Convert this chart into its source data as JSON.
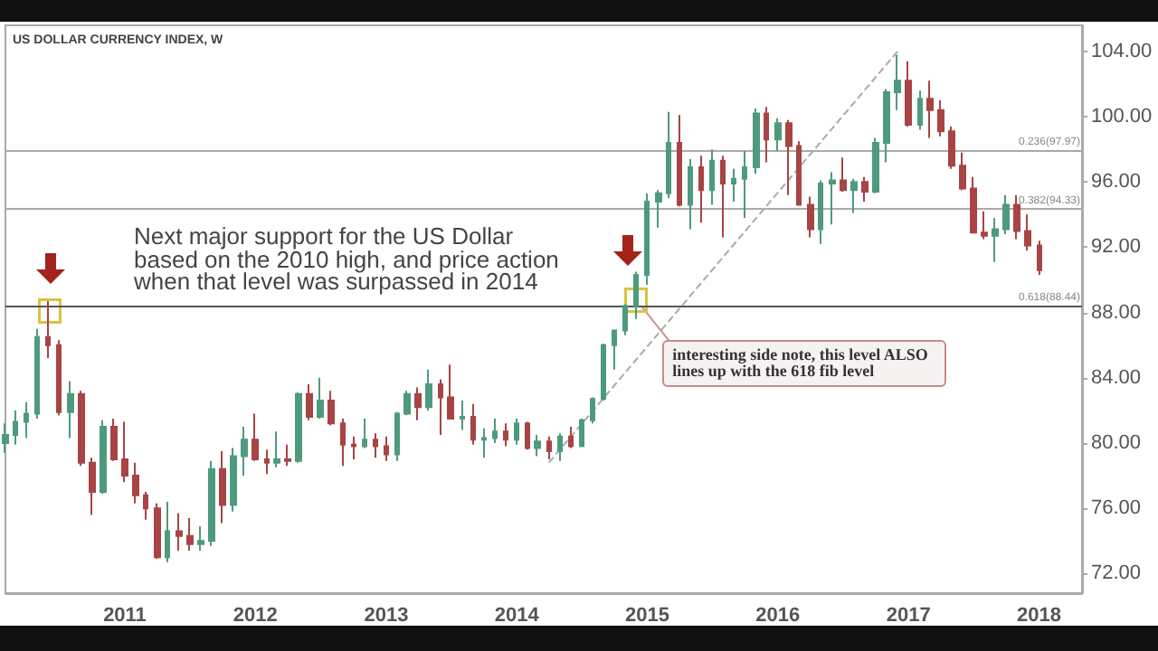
{
  "chart_data": {
    "type": "candlestick",
    "title": "US DOLLAR CURRENCY INDEX, W",
    "annotations": [
      "Next major support for the US Dollar based on the 2010 high, and price action when that level was surpassed in 2014",
      {
        "text": "interesting side note, this level ALSO lines up with the 618 fib level",
        "x": "2014-12",
        "y": 88.44
      }
    ],
    "xlim": [
      "2010-02",
      "2018-05"
    ],
    "xticks": [
      "2011",
      "2012",
      "2013",
      "2014",
      "2015",
      "2016",
      "2017",
      "2018"
    ],
    "ylim": [
      70.8,
      105.6
    ],
    "yticks": [
      {
        "value": 72,
        "label": "72.00"
      },
      {
        "value": 76,
        "label": "76.00"
      },
      {
        "value": 80,
        "label": "80.00"
      },
      {
        "value": 84,
        "label": "84.00"
      },
      {
        "value": 88,
        "label": "88.00"
      },
      {
        "value": 92,
        "label": "92.00"
      },
      {
        "value": 96,
        "label": "96.00"
      },
      {
        "value": 100,
        "label": "100.00"
      },
      {
        "value": 104,
        "label": "104.00"
      }
    ],
    "grid": false,
    "ref_lines": [
      {
        "axis": "y",
        "value": 97.97,
        "label": "0.236(97.97)",
        "color": "#aaaaaa"
      },
      {
        "axis": "y",
        "value": 94.33,
        "label": "0.382(94.33)",
        "color": "#aaaaaa"
      },
      {
        "axis": "y",
        "value": 88.44,
        "label": "0.618(88.44)",
        "color": "#555555"
      }
    ],
    "series": [
      {
        "type": "candlestick",
        "x": [
          "2010-02",
          "2010-03",
          "2010-04",
          "2010-05",
          "2010-06",
          "2010-07",
          "2010-08",
          "2010-09",
          "2010-10",
          "2010-11",
          "2010-12",
          "2011-01",
          "2011-02",
          "2011-03",
          "2011-04",
          "2011-05",
          "2011-06",
          "2011-07",
          "2011-08",
          "2011-09",
          "2011-10",
          "2011-11",
          "2011-12",
          "2012-01",
          "2012-02",
          "2012-03",
          "2012-04",
          "2012-05",
          "2012-06",
          "2012-07",
          "2012-08",
          "2012-09",
          "2012-10",
          "2012-11",
          "2012-12",
          "2013-01",
          "2013-02",
          "2013-03",
          "2013-04",
          "2013-05",
          "2013-06",
          "2013-07",
          "2013-08",
          "2013-09",
          "2013-10",
          "2013-11",
          "2013-12",
          "2014-01",
          "2014-02",
          "2014-03",
          "2014-04",
          "2014-05",
          "2014-06",
          "2014-07",
          "2014-08",
          "2014-09",
          "2014-10",
          "2014-11",
          "2014-12",
          "2015-01",
          "2015-02",
          "2015-03",
          "2015-04",
          "2015-05",
          "2015-06",
          "2015-07",
          "2015-08",
          "2015-09",
          "2015-10",
          "2015-11",
          "2015-12",
          "2016-01",
          "2016-02",
          "2016-03",
          "2016-04",
          "2016-05",
          "2016-06",
          "2016-07",
          "2016-08",
          "2016-09",
          "2016-10",
          "2016-11",
          "2016-12",
          "2017-01",
          "2017-02",
          "2017-03",
          "2017-04",
          "2017-05",
          "2017-06",
          "2017-07",
          "2017-08",
          "2017-09",
          "2017-10",
          "2017-11",
          "2017-12",
          "2018-01"
        ],
        "ohlc": [
          [
            80.0,
            81.2,
            79.4,
            80.5
          ],
          [
            80.5,
            82.0,
            79.9,
            81.3
          ],
          [
            81.3,
            82.5,
            80.3,
            81.8
          ],
          [
            81.8,
            87.0,
            81.5,
            86.5
          ],
          [
            86.5,
            88.7,
            85.2,
            86.0
          ],
          [
            86.0,
            86.3,
            81.7,
            81.9
          ],
          [
            81.9,
            83.8,
            80.3,
            83.0
          ],
          [
            83.0,
            83.2,
            78.6,
            78.8
          ],
          [
            78.8,
            79.1,
            75.6,
            77.0
          ],
          [
            77.0,
            81.4,
            76.9,
            81.0
          ],
          [
            81.0,
            81.5,
            78.9,
            79.0
          ],
          [
            79.0,
            81.3,
            77.6,
            78.0
          ],
          [
            78.0,
            78.8,
            76.3,
            76.8
          ],
          [
            76.8,
            77.0,
            75.3,
            76.0
          ],
          [
            76.0,
            76.3,
            72.9,
            73.0
          ],
          [
            73.0,
            76.4,
            72.7,
            74.6
          ],
          [
            74.6,
            75.7,
            73.4,
            74.3
          ],
          [
            74.3,
            75.4,
            73.4,
            73.8
          ],
          [
            73.8,
            74.9,
            73.4,
            74.0
          ],
          [
            74.0,
            78.9,
            73.7,
            78.4
          ],
          [
            78.4,
            79.5,
            75.1,
            76.2
          ],
          [
            76.2,
            79.7,
            75.8,
            79.2
          ],
          [
            79.2,
            81.0,
            78.0,
            80.2
          ],
          [
            80.2,
            81.8,
            78.9,
            79.0
          ],
          [
            79.0,
            79.6,
            78.1,
            78.8
          ],
          [
            78.8,
            80.7,
            78.5,
            79.0
          ],
          [
            79.0,
            79.9,
            78.6,
            78.9
          ],
          [
            78.9,
            83.1,
            78.8,
            83.0
          ],
          [
            83.0,
            83.6,
            81.4,
            81.6
          ],
          [
            81.6,
            84.0,
            81.5,
            82.6
          ],
          [
            82.6,
            83.2,
            81.1,
            81.2
          ],
          [
            81.2,
            81.5,
            78.6,
            79.9
          ],
          [
            79.9,
            80.4,
            79.0,
            79.8
          ],
          [
            79.8,
            81.5,
            79.7,
            80.2
          ],
          [
            80.2,
            80.6,
            79.1,
            79.8
          ],
          [
            79.8,
            80.4,
            78.9,
            79.3
          ],
          [
            79.3,
            81.9,
            78.9,
            81.8
          ],
          [
            81.8,
            83.2,
            81.7,
            83.0
          ],
          [
            83.0,
            83.4,
            81.4,
            82.2
          ],
          [
            82.2,
            84.5,
            82.0,
            83.6
          ],
          [
            83.6,
            83.9,
            80.5,
            82.8
          ],
          [
            82.8,
            84.8,
            81.5,
            81.5
          ],
          [
            81.5,
            82.6,
            80.8,
            81.6
          ],
          [
            81.6,
            82.4,
            79.9,
            80.2
          ],
          [
            80.2,
            80.9,
            79.1,
            80.3
          ],
          [
            80.3,
            81.5,
            80.0,
            80.7
          ],
          [
            80.7,
            81.2,
            79.8,
            80.2
          ],
          [
            80.2,
            81.5,
            79.9,
            81.2
          ],
          [
            81.2,
            81.3,
            79.6,
            79.7
          ],
          [
            79.7,
            80.5,
            79.2,
            80.1
          ],
          [
            80.1,
            80.4,
            79.0,
            79.5
          ],
          [
            79.5,
            80.6,
            78.9,
            80.4
          ],
          [
            80.4,
            81.0,
            79.7,
            79.8
          ],
          [
            79.8,
            81.5,
            79.8,
            81.4
          ],
          [
            81.4,
            82.8,
            81.2,
            82.7
          ],
          [
            82.7,
            86.1,
            82.6,
            86.0
          ],
          [
            86.0,
            86.9,
            84.5,
            86.9
          ],
          [
            86.9,
            88.5,
            86.6,
            88.4
          ],
          [
            88.4,
            90.5,
            87.6,
            90.3
          ],
          [
            90.3,
            95.3,
            89.7,
            94.8
          ],
          [
            94.8,
            95.5,
            93.2,
            95.3
          ],
          [
            95.3,
            100.3,
            95.0,
            98.4
          ],
          [
            98.4,
            100.1,
            94.5,
            94.6
          ],
          [
            94.6,
            97.4,
            93.1,
            96.9
          ],
          [
            96.9,
            97.6,
            93.5,
            95.5
          ],
          [
            95.5,
            98.0,
            94.6,
            97.3
          ],
          [
            97.3,
            97.6,
            92.6,
            95.9
          ],
          [
            95.9,
            96.8,
            94.8,
            96.2
          ],
          [
            96.2,
            97.9,
            93.8,
            96.9
          ],
          [
            96.9,
            100.5,
            96.5,
            100.2
          ],
          [
            100.2,
            100.6,
            97.2,
            98.6
          ],
          [
            98.6,
            99.9,
            97.9,
            99.6
          ],
          [
            99.6,
            99.8,
            95.2,
            98.2
          ],
          [
            98.2,
            98.5,
            94.6,
            94.6
          ],
          [
            94.6,
            95.1,
            92.6,
            93.1
          ],
          [
            93.1,
            96.1,
            92.2,
            95.9
          ],
          [
            95.9,
            96.6,
            93.4,
            96.1
          ],
          [
            96.1,
            97.5,
            95.4,
            95.5
          ],
          [
            95.5,
            96.2,
            94.1,
            96.0
          ],
          [
            96.0,
            96.3,
            94.8,
            95.4
          ],
          [
            95.4,
            98.7,
            95.3,
            98.4
          ],
          [
            98.4,
            101.7,
            97.2,
            101.5
          ],
          [
            101.5,
            103.8,
            100.4,
            102.2
          ],
          [
            102.2,
            103.4,
            99.4,
            99.5
          ],
          [
            99.5,
            101.6,
            99.2,
            101.1
          ],
          [
            101.1,
            102.2,
            98.7,
            100.4
          ],
          [
            100.4,
            101.0,
            98.8,
            99.1
          ],
          [
            99.1,
            99.4,
            96.8,
            97.0
          ],
          [
            97.0,
            97.8,
            95.5,
            95.6
          ],
          [
            95.6,
            96.3,
            92.9,
            92.9
          ],
          [
            92.9,
            94.2,
            92.5,
            92.7
          ],
          [
            92.7,
            93.8,
            91.1,
            93.1
          ],
          [
            93.1,
            95.2,
            92.8,
            94.6
          ],
          [
            94.6,
            95.2,
            92.5,
            93.0
          ],
          [
            93.0,
            94.0,
            91.8,
            92.1
          ],
          [
            92.1,
            92.4,
            90.3,
            90.6
          ]
        ],
        "colors": [
          "#4e9a7e",
          "#4e9a7e",
          "#4e9a7e",
          "#4e9a7e",
          "#a84444",
          "#a84444",
          "#4e9a7e",
          "#a84444",
          "#a84444",
          "#4e9a7e",
          "#a84444",
          "#a84444",
          "#a84444",
          "#a84444",
          "#a84444",
          "#4e9a7e",
          "#a84444",
          "#a84444",
          "#4e9a7e",
          "#4e9a7e",
          "#a84444",
          "#4e9a7e",
          "#4e9a7e",
          "#a84444",
          "#a84444",
          "#4e9a7e",
          "#a84444",
          "#4e9a7e",
          "#a84444",
          "#4e9a7e",
          "#a84444",
          "#a84444",
          "#a84444",
          "#4e9a7e",
          "#a84444",
          "#a84444",
          "#4e9a7e",
          "#4e9a7e",
          "#a84444",
          "#4e9a7e",
          "#a84444",
          "#a84444",
          "#4e9a7e",
          "#a84444",
          "#4e9a7e",
          "#4e9a7e",
          "#a84444",
          "#4e9a7e",
          "#a84444",
          "#4e9a7e",
          "#a84444",
          "#4e9a7e",
          "#a84444",
          "#4e9a7e",
          "#4e9a7e",
          "#4e9a7e",
          "#4e9a7e",
          "#4e9a7e",
          "#4e9a7e",
          "#4e9a7e",
          "#4e9a7e",
          "#4e9a7e",
          "#a84444",
          "#4e9a7e",
          "#a84444",
          "#4e9a7e",
          "#a84444",
          "#4e9a7e",
          "#4e9a7e",
          "#4e9a7e",
          "#a84444",
          "#4e9a7e",
          "#a84444",
          "#a84444",
          "#a84444",
          "#4e9a7e",
          "#4e9a7e",
          "#a84444",
          "#4e9a7e",
          "#a84444",
          "#4e9a7e",
          "#4e9a7e",
          "#4e9a7e",
          "#a84444",
          "#4e9a7e",
          "#a84444",
          "#a84444",
          "#a84444",
          "#a84444",
          "#a84444",
          "#a84444",
          "#4e9a7e",
          "#4e9a7e",
          "#a84444",
          "#a84444",
          "#a84444"
        ]
      },
      {
        "type": "line",
        "x": [
          "2014-04",
          "2016-12"
        ],
        "values": [
          78.8,
          104.0
        ],
        "color": "#aaaaaa",
        "line_style": "dashed"
      }
    ]
  }
}
